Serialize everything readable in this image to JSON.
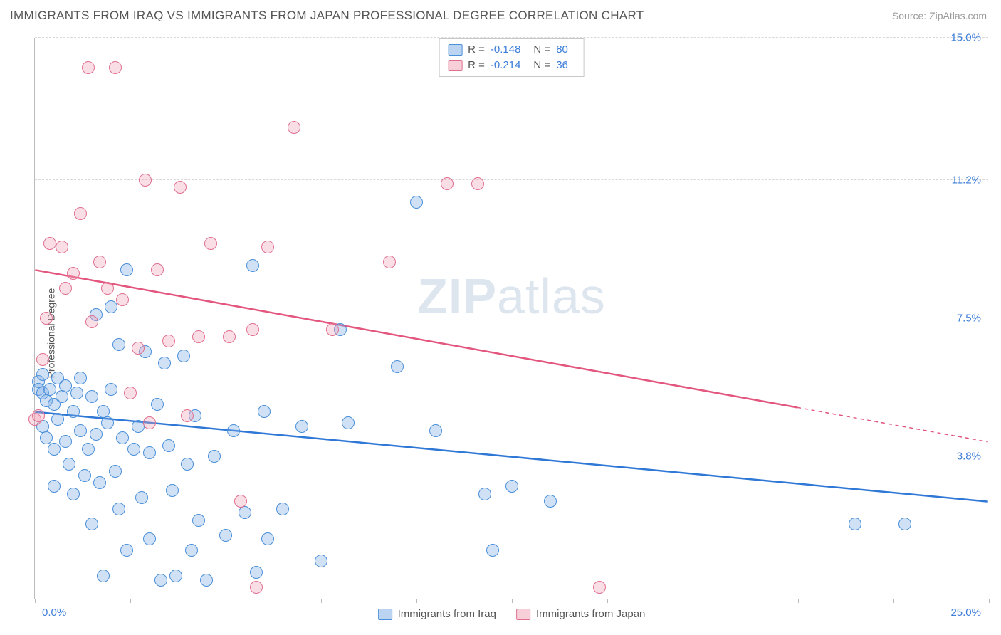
{
  "title": "IMMIGRANTS FROM IRAQ VS IMMIGRANTS FROM JAPAN PROFESSIONAL DEGREE CORRELATION CHART",
  "source_label": "Source:",
  "source_name": "ZipAtlas.com",
  "ylabel": "Professional Degree",
  "watermark_a": "ZIP",
  "watermark_b": "atlas",
  "chart": {
    "type": "scatter",
    "xlim": [
      0,
      25
    ],
    "ylim": [
      0,
      15
    ],
    "x_tick_step": 2.5,
    "y_ticks": [
      3.8,
      7.5,
      11.2,
      15.0
    ],
    "y_tick_labels": [
      "3.8%",
      "7.5%",
      "11.2%",
      "15.0%"
    ],
    "x_min_label": "0.0%",
    "x_max_label": "25.0%",
    "background_color": "#ffffff",
    "grid_color": "#d8d8d8",
    "axis_color": "#bbbbbb",
    "tick_label_color": "#3b7dd8",
    "title_color": "#555555",
    "marker_radius": 9,
    "series": [
      {
        "name": "Immigrants from Iraq",
        "color_fill": "rgba(120,170,230,0.35)",
        "color_stroke": "#4a8fd9",
        "trend_color": "#2f78d6",
        "r": -0.148,
        "n": 80,
        "trend": {
          "x1": 0,
          "y1": 5.0,
          "x2": 25,
          "y2": 2.6,
          "dash_from_x": 25
        },
        "points": [
          [
            0.1,
            5.8
          ],
          [
            0.1,
            5.6
          ],
          [
            0.2,
            5.5
          ],
          [
            0.2,
            6.0
          ],
          [
            0.2,
            4.6
          ],
          [
            0.3,
            5.3
          ],
          [
            0.3,
            4.3
          ],
          [
            0.4,
            5.6
          ],
          [
            0.5,
            4.0
          ],
          [
            0.5,
            5.2
          ],
          [
            0.5,
            3.0
          ],
          [
            0.6,
            5.9
          ],
          [
            0.6,
            4.8
          ],
          [
            0.7,
            5.4
          ],
          [
            0.8,
            5.7
          ],
          [
            0.8,
            4.2
          ],
          [
            0.9,
            3.6
          ],
          [
            1.0,
            5.0
          ],
          [
            1.0,
            2.8
          ],
          [
            1.1,
            5.5
          ],
          [
            1.2,
            4.5
          ],
          [
            1.2,
            5.9
          ],
          [
            1.3,
            3.3
          ],
          [
            1.4,
            4.0
          ],
          [
            1.5,
            5.4
          ],
          [
            1.5,
            2.0
          ],
          [
            1.6,
            7.6
          ],
          [
            1.6,
            4.4
          ],
          [
            1.7,
            3.1
          ],
          [
            1.8,
            5.0
          ],
          [
            1.8,
            0.6
          ],
          [
            1.9,
            4.7
          ],
          [
            2.0,
            7.8
          ],
          [
            2.0,
            5.6
          ],
          [
            2.1,
            3.4
          ],
          [
            2.2,
            2.4
          ],
          [
            2.2,
            6.8
          ],
          [
            2.3,
            4.3
          ],
          [
            2.4,
            8.8
          ],
          [
            2.4,
            1.3
          ],
          [
            2.6,
            4.0
          ],
          [
            2.7,
            4.6
          ],
          [
            2.8,
            2.7
          ],
          [
            2.9,
            6.6
          ],
          [
            3.0,
            3.9
          ],
          [
            3.0,
            1.6
          ],
          [
            3.2,
            5.2
          ],
          [
            3.3,
            0.5
          ],
          [
            3.4,
            6.3
          ],
          [
            3.5,
            4.1
          ],
          [
            3.6,
            2.9
          ],
          [
            3.7,
            0.6
          ],
          [
            3.9,
            6.5
          ],
          [
            4.0,
            3.6
          ],
          [
            4.1,
            1.3
          ],
          [
            4.2,
            4.9
          ],
          [
            4.3,
            2.1
          ],
          [
            4.5,
            0.5
          ],
          [
            4.7,
            3.8
          ],
          [
            5.0,
            1.7
          ],
          [
            5.2,
            4.5
          ],
          [
            5.5,
            2.3
          ],
          [
            5.7,
            8.9
          ],
          [
            5.8,
            0.7
          ],
          [
            6.0,
            5.0
          ],
          [
            6.1,
            1.6
          ],
          [
            6.5,
            2.4
          ],
          [
            7.0,
            4.6
          ],
          [
            7.5,
            1.0
          ],
          [
            8.0,
            7.2
          ],
          [
            8.2,
            4.7
          ],
          [
            9.5,
            6.2
          ],
          [
            10.0,
            10.6
          ],
          [
            10.5,
            4.5
          ],
          [
            11.8,
            2.8
          ],
          [
            12.0,
            1.3
          ],
          [
            12.5,
            3.0
          ],
          [
            13.5,
            2.6
          ],
          [
            21.5,
            2.0
          ],
          [
            22.8,
            2.0
          ]
        ]
      },
      {
        "name": "Immigrants from Japan",
        "color_fill": "rgba(240,160,180,0.35)",
        "color_stroke": "#e06f8f",
        "trend_color": "#e3567e",
        "r": -0.214,
        "n": 36,
        "trend": {
          "x1": 0,
          "y1": 8.8,
          "x2": 25,
          "y2": 4.2,
          "dash_from_x": 20
        },
        "points": [
          [
            0.0,
            4.8
          ],
          [
            0.1,
            4.9
          ],
          [
            0.2,
            6.4
          ],
          [
            0.3,
            7.5
          ],
          [
            0.4,
            9.5
          ],
          [
            0.7,
            9.4
          ],
          [
            0.8,
            8.3
          ],
          [
            1.0,
            8.7
          ],
          [
            1.2,
            10.3
          ],
          [
            1.4,
            14.2
          ],
          [
            1.5,
            7.4
          ],
          [
            1.7,
            9.0
          ],
          [
            1.9,
            8.3
          ],
          [
            2.1,
            14.2
          ],
          [
            2.3,
            8.0
          ],
          [
            2.5,
            5.5
          ],
          [
            2.7,
            6.7
          ],
          [
            2.9,
            11.2
          ],
          [
            3.0,
            4.7
          ],
          [
            3.2,
            8.8
          ],
          [
            3.5,
            6.9
          ],
          [
            3.8,
            11.0
          ],
          [
            4.0,
            4.9
          ],
          [
            4.3,
            7.0
          ],
          [
            4.6,
            9.5
          ],
          [
            5.1,
            7.0
          ],
          [
            5.4,
            2.6
          ],
          [
            5.7,
            7.2
          ],
          [
            5.8,
            0.3
          ],
          [
            6.1,
            9.4
          ],
          [
            6.8,
            12.6
          ],
          [
            7.8,
            7.2
          ],
          [
            9.3,
            9.0
          ],
          [
            10.8,
            11.1
          ],
          [
            11.6,
            11.1
          ],
          [
            14.8,
            0.3
          ]
        ]
      }
    ]
  },
  "legend_top": {
    "r_label": "R =",
    "n_label": "N ="
  },
  "legend_bottom": [
    "Immigrants from Iraq",
    "Immigrants from Japan"
  ]
}
